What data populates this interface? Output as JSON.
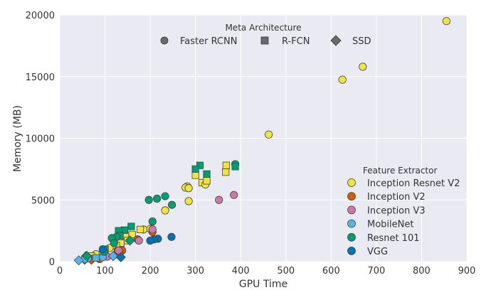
{
  "chart_data": {
    "type": "scatter",
    "title": "",
    "xlabel": "GPU Time",
    "ylabel": "Memory (MB)",
    "xlim": [
      0,
      900
    ],
    "ylim": [
      0,
      20000
    ],
    "xticks": [
      0,
      100,
      200,
      300,
      400,
      500,
      600,
      700,
      800,
      900
    ],
    "yticks": [
      0,
      5000,
      10000,
      15000,
      20000
    ],
    "grid": true,
    "meta_legend": {
      "title": "Meta Architecture",
      "entries": [
        {
          "name": "Faster RCNN",
          "marker": "circle"
        },
        {
          "name": "R-FCN",
          "marker": "square"
        },
        {
          "name": "SSD",
          "marker": "diamond"
        }
      ]
    },
    "color_legend": {
      "title": "Feature Extractor",
      "position": "lower-right"
    },
    "series": [
      {
        "name": "Inception Resnet V2",
        "color": "#f0e442",
        "points": [
          [
            855,
            19500,
            "circle"
          ],
          [
            670,
            15800,
            "circle"
          ],
          [
            625,
            14750,
            "circle"
          ],
          [
            462,
            10300,
            "circle"
          ],
          [
            368,
            7800,
            "square"
          ],
          [
            367,
            7250,
            "square"
          ],
          [
            300,
            7000,
            "square"
          ],
          [
            315,
            6400,
            "square"
          ],
          [
            322,
            6250,
            "circle"
          ],
          [
            325,
            6550,
            "square"
          ],
          [
            282,
            6100,
            "circle"
          ],
          [
            278,
            6000,
            "circle"
          ],
          [
            285,
            5950,
            "circle"
          ],
          [
            285,
            4900,
            "circle"
          ],
          [
            233,
            4150,
            "circle"
          ],
          [
            200,
            2650,
            "circle"
          ],
          [
            185,
            2600,
            "circle"
          ],
          [
            178,
            2600,
            "square"
          ],
          [
            160,
            2200,
            "square"
          ],
          [
            145,
            2100,
            "square"
          ],
          [
            150,
            1700,
            "square"
          ],
          [
            135,
            1500,
            "square"
          ],
          [
            125,
            1300,
            "square"
          ],
          [
            110,
            1100,
            "circle"
          ],
          [
            95,
            700,
            "square"
          ],
          [
            80,
            600,
            "circle"
          ],
          [
            70,
            450,
            "square"
          ],
          [
            58,
            450,
            "diamond"
          ]
        ]
      },
      {
        "name": "Inception V2",
        "color": "#d55e00",
        "points": [
          [
            205,
            2400,
            "circle"
          ],
          [
            172,
            1800,
            "circle"
          ],
          [
            138,
            900,
            "circle"
          ],
          [
            133,
            550,
            "square"
          ],
          [
            128,
            900,
            "circle"
          ],
          [
            88,
            200,
            "circle"
          ],
          [
            70,
            150,
            "diamond"
          ],
          [
            55,
            150,
            "diamond"
          ]
        ]
      },
      {
        "name": "Inception V3",
        "color": "#cc79a7",
        "points": [
          [
            385,
            5400,
            "circle"
          ],
          [
            352,
            5000,
            "circle"
          ],
          [
            205,
            2600,
            "circle"
          ],
          [
            175,
            1700,
            "circle"
          ],
          [
            130,
            900,
            "circle"
          ],
          [
            105,
            400,
            "circle"
          ]
        ]
      },
      {
        "name": "MobileNet",
        "color": "#56b4e9",
        "points": [
          [
            118,
            450,
            "diamond"
          ],
          [
            95,
            350,
            "circle"
          ],
          [
            80,
            300,
            "square"
          ],
          [
            62,
            250,
            "circle"
          ],
          [
            55,
            200,
            "circle"
          ],
          [
            42,
            100,
            "diamond"
          ]
        ]
      },
      {
        "name": "Resnet 101",
        "color": "#009e73",
        "points": [
          [
            388,
            7900,
            "circle"
          ],
          [
            388,
            7700,
            "square"
          ],
          [
            310,
            7800,
            "square"
          ],
          [
            300,
            7500,
            "square"
          ],
          [
            325,
            7100,
            "square"
          ],
          [
            215,
            5100,
            "circle"
          ],
          [
            197,
            5000,
            "circle"
          ],
          [
            233,
            5300,
            "circle"
          ],
          [
            248,
            4600,
            "circle"
          ],
          [
            205,
            3250,
            "circle"
          ],
          [
            158,
            2850,
            "square"
          ],
          [
            143,
            2550,
            "square"
          ],
          [
            130,
            2500,
            "square"
          ],
          [
            133,
            2100,
            "square"
          ],
          [
            125,
            2000,
            "circle"
          ],
          [
            115,
            1900,
            "circle"
          ],
          [
            155,
            1700,
            "diamond"
          ],
          [
            120,
            1500,
            "circle"
          ],
          [
            100,
            1000,
            "square"
          ],
          [
            98,
            800,
            "circle"
          ],
          [
            60,
            450,
            "diamond"
          ]
        ]
      },
      {
        "name": "VGG",
        "color": "#0072b2",
        "points": [
          [
            247,
            2000,
            "circle"
          ],
          [
            217,
            1850,
            "circle"
          ],
          [
            208,
            1800,
            "circle"
          ],
          [
            200,
            1700,
            "circle"
          ],
          [
            135,
            350,
            "diamond"
          ],
          [
            95,
            1000,
            "circle"
          ]
        ]
      }
    ]
  }
}
